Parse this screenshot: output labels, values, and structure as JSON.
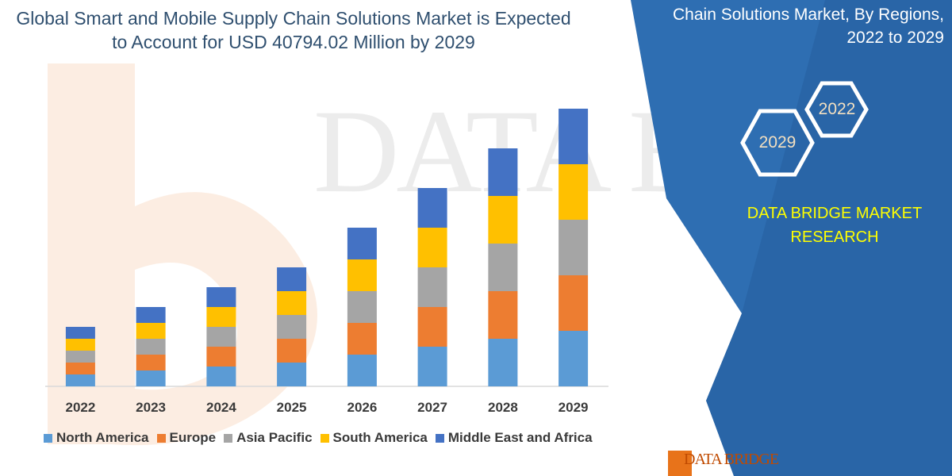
{
  "title_lines": [
    "Global Smart and Mobile Supply Chain Solutions Market is Expected",
    "to Account for USD 40794.02 Million by 2029"
  ],
  "panel": {
    "title_lines": [
      "Chain Solutions Market, By Regions,",
      "2022 to 2029"
    ],
    "hex_left": "2029",
    "hex_right": "2022",
    "brand_lines": [
      "DATA BRIDGE MARKET",
      "RESEARCH"
    ],
    "watermark": "DATA BRIDGE",
    "logo_text": "DATA BRIDGE"
  },
  "colors": {
    "panel_bg": "#2e6eb2",
    "panel_accent": "#245c9a",
    "hex_stroke": "#ffffff",
    "brand_text": "#ffff00",
    "logo_orange": "#e8731a"
  },
  "chart_data": {
    "type": "bar",
    "stacked": true,
    "categories": [
      "2022",
      "2023",
      "2024",
      "2025",
      "2026",
      "2027",
      "2028",
      "2029"
    ],
    "series": [
      {
        "name": "North America",
        "color": "#5b9bd5",
        "values": [
          3,
          4,
          5,
          6,
          8,
          10,
          12,
          14
        ]
      },
      {
        "name": "Europe",
        "color": "#ed7d31",
        "values": [
          3,
          4,
          5,
          6,
          8,
          10,
          12,
          14
        ]
      },
      {
        "name": "Asia Pacific",
        "color": "#a5a5a5",
        "values": [
          3,
          4,
          5,
          6,
          8,
          10,
          12,
          14
        ]
      },
      {
        "name": "South America",
        "color": "#ffc000",
        "values": [
          3,
          4,
          5,
          6,
          8,
          10,
          12,
          14
        ]
      },
      {
        "name": "Middle East and Africa",
        "color": "#4472c4",
        "values": [
          3,
          4,
          5,
          6,
          8,
          10,
          12,
          14
        ]
      }
    ],
    "ylim": [
      0,
      70
    ],
    "xlabel": "",
    "ylabel": "",
    "grid": false,
    "legend_position": "bottom"
  }
}
